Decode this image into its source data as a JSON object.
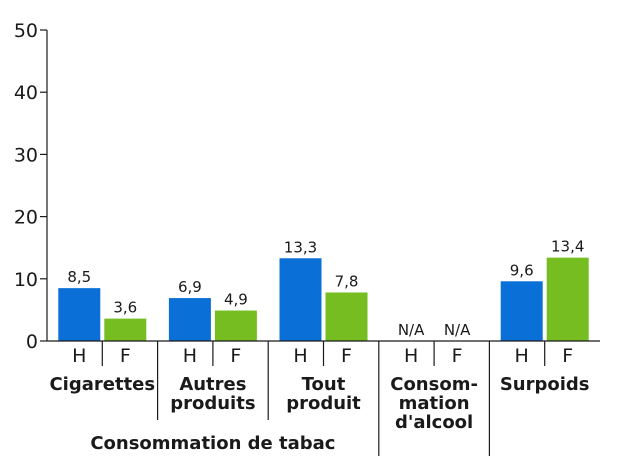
{
  "chart_data": {
    "type": "bar",
    "ylim": [
      0,
      50
    ],
    "yticks": [
      0,
      10,
      20,
      30,
      40,
      50
    ],
    "grid": false,
    "colors": {
      "H": "#0a6fd6",
      "F": "#76bd22"
    },
    "groups": [
      {
        "label_lines": [
          "Cigarettes"
        ],
        "bars": [
          {
            "sex": "H",
            "value": 8.5,
            "label": "8,5"
          },
          {
            "sex": "F",
            "value": 3.6,
            "label": "3,6"
          }
        ]
      },
      {
        "label_lines": [
          "Autres",
          "produits"
        ],
        "bars": [
          {
            "sex": "H",
            "value": 6.9,
            "label": "6,9"
          },
          {
            "sex": "F",
            "value": 4.9,
            "label": "4,9"
          }
        ]
      },
      {
        "label_lines": [
          "Tout",
          "produit"
        ],
        "bars": [
          {
            "sex": "H",
            "value": 13.3,
            "label": "13,3"
          },
          {
            "sex": "F",
            "value": 7.8,
            "label": "7,8"
          }
        ]
      },
      {
        "label_lines": [
          "Consom-",
          "mation",
          "d'alcool"
        ],
        "bars": [
          {
            "sex": "H",
            "value": null,
            "label": "N/A"
          },
          {
            "sex": "F",
            "value": null,
            "label": "N/A"
          }
        ]
      },
      {
        "label_lines": [
          "Surpoids"
        ],
        "bars": [
          {
            "sex": "H",
            "value": 9.6,
            "label": "9,6"
          },
          {
            "sex": "F",
            "value": 13.4,
            "label": "13,4"
          }
        ]
      }
    ],
    "super_groups": [
      {
        "label": "Consommation de tabac",
        "span": [
          0,
          2
        ]
      }
    ]
  }
}
